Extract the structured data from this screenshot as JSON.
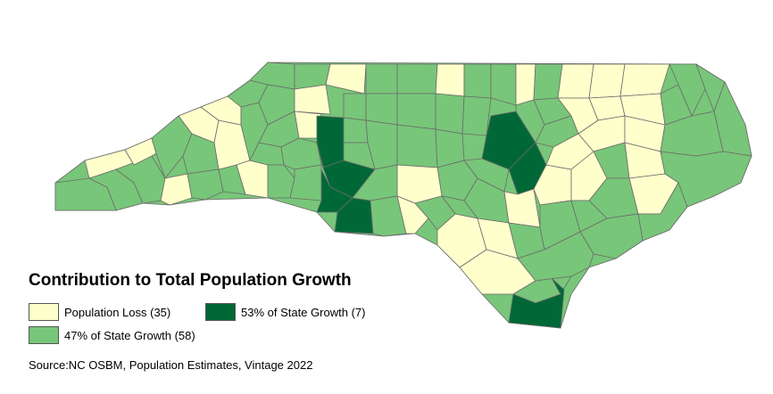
{
  "legend": {
    "title": "Contribution to Total Population Growth",
    "items": [
      {
        "label": "Population Loss (35)",
        "color": "#ffffcc"
      },
      {
        "label": "53% of State Growth (7)",
        "color": "#006837"
      },
      {
        "label": "47% of State Growth (58)",
        "color": "#78c679"
      }
    ]
  },
  "source": "Source:NC OSBM, Population Estimates, Vintage 2022",
  "colors": {
    "loss": "#ffffcc",
    "high": "#006837",
    "growth": "#78c679",
    "border": "#6b6b6b"
  }
}
